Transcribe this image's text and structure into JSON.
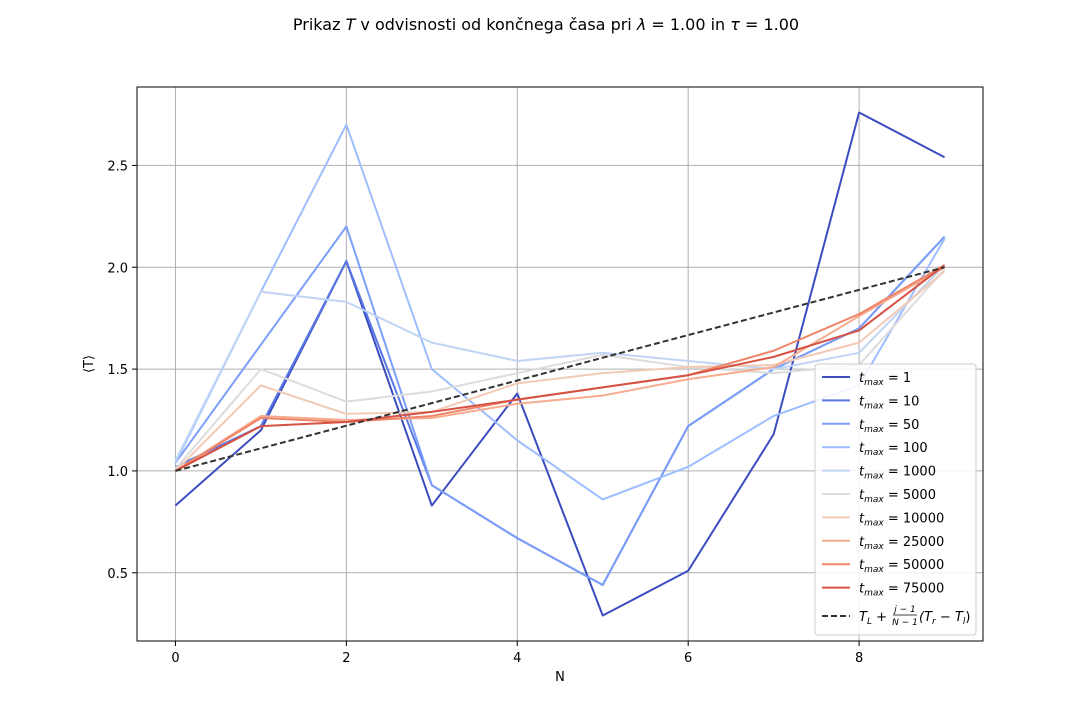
{
  "chart_data": {
    "type": "line",
    "title_parts": {
      "prefix": "Prikaz ",
      "var": "T",
      "middle": " v odvisnosti od končnega časa pri ",
      "lambda": "λ",
      "eq1": " = 1.00 in ",
      "tau": "τ",
      "eq2": " = 1.00"
    },
    "xlabel": "N",
    "ylabel": "⟨T⟩",
    "xlim": [
      -0.45,
      9.45
    ],
    "ylim": [
      0.165,
      2.885
    ],
    "xticks": [
      0,
      2,
      4,
      6,
      8
    ],
    "yticks": [
      0.5,
      1.0,
      1.5,
      2.0,
      2.5
    ],
    "xtick_labels": [
      "0",
      "2",
      "4",
      "6",
      "8"
    ],
    "ytick_labels": [
      "0.5",
      "1.0",
      "1.5",
      "2.0",
      "2.5"
    ],
    "grid": true,
    "legend_position": "lower right",
    "x": [
      0,
      1,
      2,
      3,
      4,
      5,
      6,
      7,
      8,
      9
    ],
    "series": [
      {
        "name": "1",
        "color": "#3b4cc0",
        "values": [
          0.83,
          1.2,
          2.03,
          0.83,
          1.38,
          0.29,
          0.51,
          1.18,
          2.76,
          2.54
        ]
      },
      {
        "name": "10",
        "color": "#5977e3",
        "values": [
          1.02,
          1.22,
          2.03,
          0.93,
          0.67,
          0.44,
          1.22,
          1.5,
          1.7,
          2.15
        ]
      },
      {
        "name": "50",
        "color": "#7b9ff9",
        "values": [
          1.04,
          1.62,
          2.2,
          0.93,
          0.67,
          0.44,
          1.22,
          1.5,
          1.7,
          2.15
        ]
      },
      {
        "name": "100",
        "color": "#9ebeff",
        "values": [
          1.04,
          1.88,
          2.7,
          1.5,
          1.15,
          0.86,
          1.02,
          1.27,
          1.42,
          2.14
        ]
      },
      {
        "name": "1000",
        "color": "#c0d4f5",
        "values": [
          1.05,
          1.88,
          1.83,
          1.63,
          1.54,
          1.58,
          1.54,
          1.5,
          1.58,
          2.01
        ]
      },
      {
        "name": "5000",
        "color": "#dddcdc",
        "values": [
          1.01,
          1.5,
          1.34,
          1.39,
          1.48,
          1.57,
          1.51,
          1.48,
          1.52,
          1.99
        ]
      },
      {
        "name": "10000",
        "color": "#f2cbb7",
        "values": [
          1.0,
          1.42,
          1.28,
          1.29,
          1.43,
          1.48,
          1.51,
          1.52,
          1.63,
          1.98
        ]
      },
      {
        "name": "25000",
        "color": "#f7ac8e",
        "values": [
          1.0,
          1.27,
          1.25,
          1.26,
          1.33,
          1.37,
          1.45,
          1.51,
          1.76,
          2.0
        ]
      },
      {
        "name": "50000",
        "color": "#ee8468",
        "values": [
          1.0,
          1.26,
          1.24,
          1.27,
          1.35,
          1.41,
          1.47,
          1.59,
          1.77,
          2.01
        ]
      },
      {
        "name": "75000",
        "color": "#d65244",
        "values": [
          1.0,
          1.22,
          1.24,
          1.29,
          1.35,
          1.41,
          1.47,
          1.56,
          1.69,
          2.01
        ]
      }
    ],
    "series_label_prefix": "t",
    "series_label_sub": "max",
    "series_label_eq": " = ",
    "reference": {
      "color": "#333333",
      "values": [
        1.0,
        1.111,
        1.222,
        1.333,
        1.444,
        1.556,
        1.667,
        1.778,
        1.889,
        2.0
      ],
      "label_parts": {
        "lead": "T",
        "lead_sub": "L",
        "plus": " + ",
        "frac_num": "j − 1",
        "frac_den": "N − 1",
        "open": "(T",
        "r_sub": "r",
        "minus": " − T",
        "l_sub": "l",
        "close": ")"
      }
    }
  }
}
